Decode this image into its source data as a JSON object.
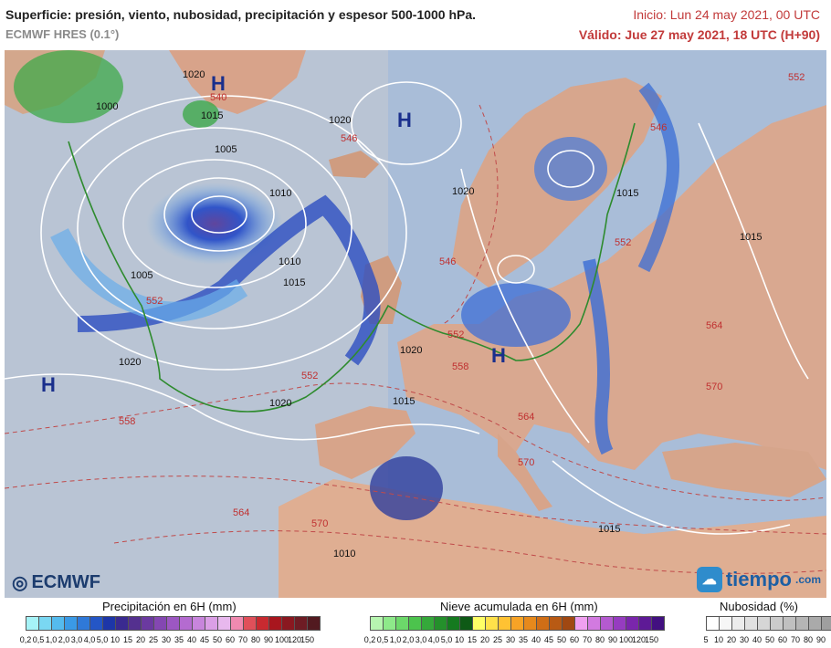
{
  "header": {
    "title": "Superficie: presión, viento, nubosidad, precipitación y espesor 500-1000 hPa.",
    "model": "ECMWF HRES (0.1°)",
    "init": "Inicio: Lun 24 may 2021, 00 UTC",
    "valid": "Válido: Jue 27 may 2021, 18 UTC (H+90)"
  },
  "map": {
    "high_label": "H",
    "isobar_labels": [
      "1000",
      "1005",
      "1005",
      "1010",
      "1010",
      "1015",
      "1015",
      "1015",
      "1015",
      "1015",
      "1020",
      "1020",
      "1020",
      "1020",
      "1020",
      "1020",
      "1010",
      "1015"
    ],
    "thickness_labels": [
      "552",
      "552",
      "552",
      "552",
      "552",
      "558",
      "558",
      "564",
      "564",
      "564",
      "570",
      "570",
      "570",
      "546",
      "546",
      "546",
      "540"
    ]
  },
  "legend": {
    "precip": {
      "title": "Precipitación en 6H (mm)",
      "labels": [
        "0,2",
        "0,5",
        "1,0",
        "2,0",
        "3,0",
        "4,0",
        "5,0",
        "10",
        "15",
        "20",
        "25",
        "30",
        "35",
        "40",
        "45",
        "50",
        "60",
        "70",
        "80",
        "90",
        "100",
        "120",
        "150"
      ],
      "colors": [
        "#a6f3f7",
        "#7ad7f2",
        "#55bbee",
        "#3a9ae6",
        "#2f79d8",
        "#2456c6",
        "#1d36a8",
        "#3a2a90",
        "#54308f",
        "#6b3aa0",
        "#8447b2",
        "#9c57c2",
        "#b46bd0",
        "#c885dc",
        "#db9fe6",
        "#e8b8ee",
        "#f08ab0",
        "#e0505a",
        "#c82a30",
        "#a8161e",
        "#8a1820",
        "#6e1c24",
        "#521a20"
      ]
    },
    "snow": {
      "title": "Nieve acumulada en 6H (mm)",
      "labels": [
        "0,2",
        "0,5",
        "1,0",
        "2,0",
        "3,0",
        "4,0",
        "5,0",
        "10",
        "15",
        "20",
        "25",
        "30",
        "35",
        "40",
        "45",
        "50",
        "60",
        "70",
        "80",
        "90",
        "100",
        "120",
        "150"
      ],
      "colors": [
        "#b7f5b0",
        "#8ee98a",
        "#6cd86a",
        "#4cc34d",
        "#35a83a",
        "#24902b",
        "#157a1f",
        "#0e5a16",
        "#ffff66",
        "#ffe14a",
        "#ffc233",
        "#f7a326",
        "#e6891c",
        "#d06e16",
        "#b85a14",
        "#a04812",
        "#f0a0f0",
        "#d27ae0",
        "#b45ad0",
        "#963cc0",
        "#7a26ac",
        "#5e1a96",
        "#421080"
      ]
    },
    "cloud": {
      "title": "Nubosidad (%)",
      "labels": [
        "5",
        "10",
        "20",
        "30",
        "40",
        "50",
        "60",
        "70",
        "80",
        "90"
      ],
      "colors": [
        "#ffffff",
        "#f6f6f6",
        "#ececec",
        "#e1e1e1",
        "#d6d6d6",
        "#cbcbcb",
        "#c0c0c0",
        "#b5b5b5",
        "#aaaaaa",
        "#9f9f9f"
      ]
    }
  },
  "logos": {
    "ecmwf": "ECMWF",
    "tiempo": "tiempo",
    "tiempo_suffix": ".com"
  }
}
